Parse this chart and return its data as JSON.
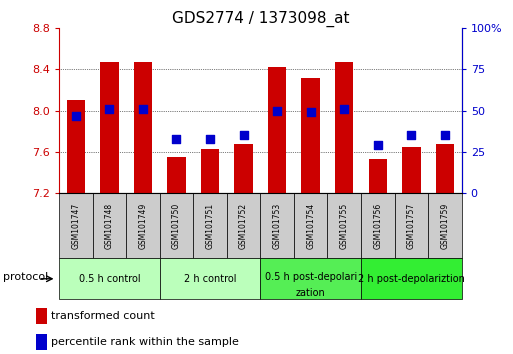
{
  "title": "GDS2774 / 1373098_at",
  "samples": [
    "GSM101747",
    "GSM101748",
    "GSM101749",
    "GSM101750",
    "GSM101751",
    "GSM101752",
    "GSM101753",
    "GSM101754",
    "GSM101755",
    "GSM101756",
    "GSM101757",
    "GSM101759"
  ],
  "transformed_counts": [
    8.1,
    8.47,
    8.47,
    7.55,
    7.63,
    7.68,
    8.42,
    8.32,
    8.47,
    7.53,
    7.65,
    7.68
  ],
  "percentile_ranks": [
    47,
    51,
    51,
    33,
    33,
    35,
    50,
    49,
    51,
    29,
    35,
    35
  ],
  "ylim_left": [
    7.2,
    8.8
  ],
  "ylim_right": [
    0,
    100
  ],
  "bar_color": "#cc0000",
  "dot_color": "#0000cc",
  "bar_bottom": 7.2,
  "groups": [
    {
      "label": "0.5 h control",
      "start": 0,
      "end": 3,
      "color": "#bbffbb"
    },
    {
      "label": "2 h control",
      "start": 3,
      "end": 6,
      "color": "#bbffbb"
    },
    {
      "label": "0.5 h post-depolarization",
      "start": 6,
      "end": 9,
      "color": "#55ee55"
    },
    {
      "label": "2 h post-depolariztion",
      "start": 9,
      "end": 12,
      "color": "#33ee33"
    }
  ],
  "left_yticks": [
    7.2,
    7.6,
    8.0,
    8.4,
    8.8
  ],
  "right_yticks": [
    0,
    25,
    50,
    75,
    100
  ],
  "grid_lines": [
    7.6,
    8.0,
    8.4
  ],
  "title_fontsize": 11,
  "tick_fontsize": 8,
  "bar_width": 0.55,
  "sample_box_color": "#cccccc",
  "background_color": "#ffffff"
}
